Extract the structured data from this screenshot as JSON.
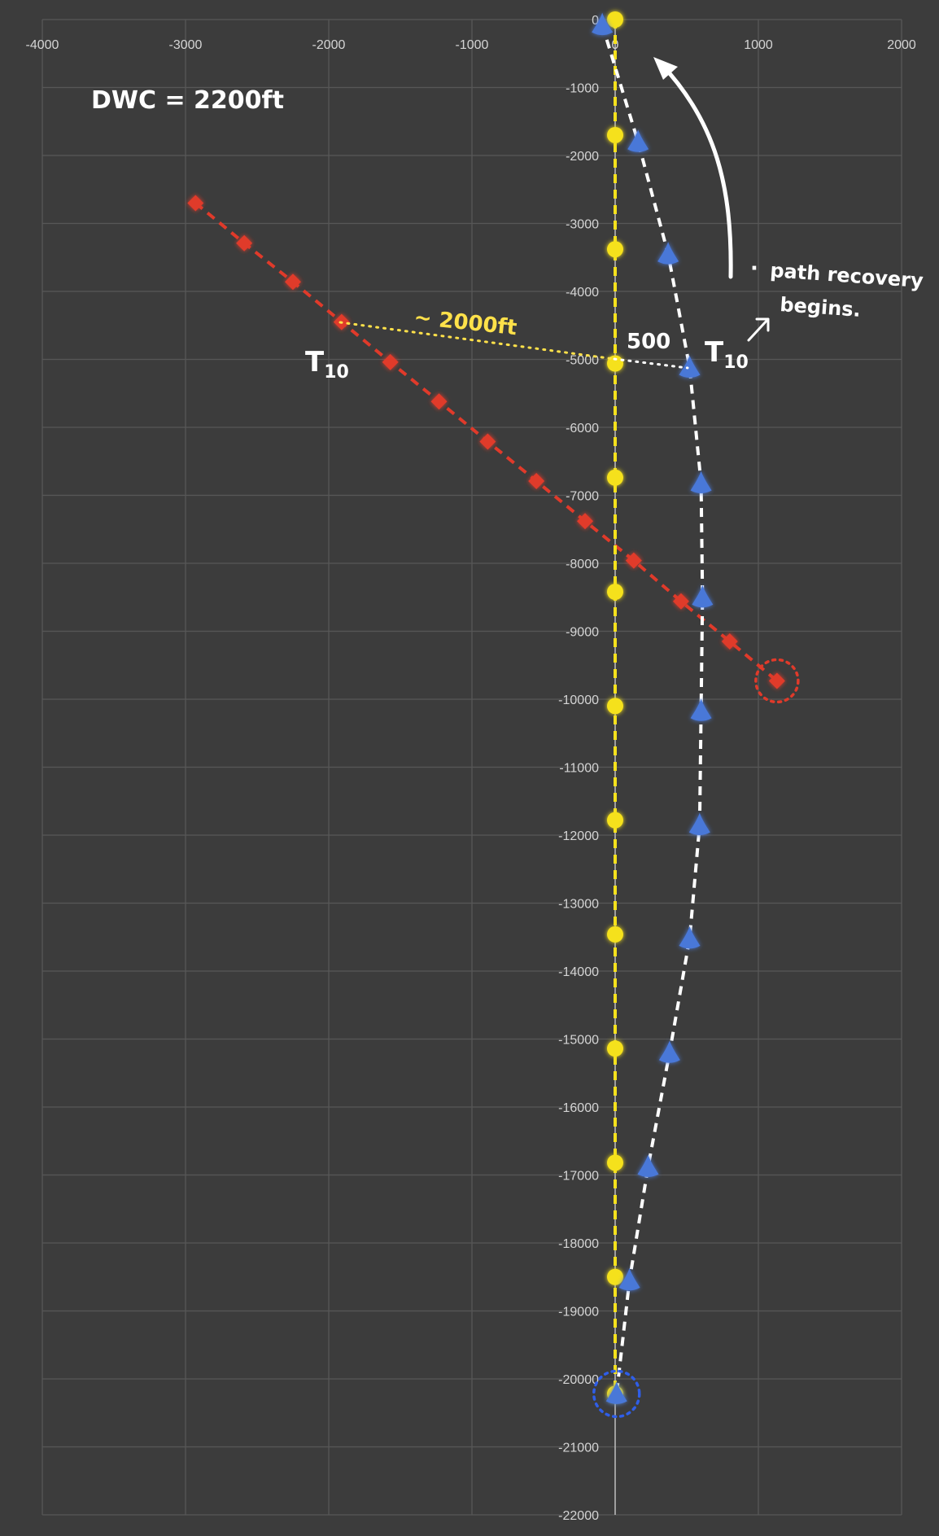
{
  "chart_data": {
    "type": "scatter",
    "xlim": [
      -4000,
      2000
    ],
    "ylim": [
      -22000,
      0
    ],
    "x_ticks": [
      -4000,
      -3000,
      -2000,
      -1000,
      0,
      1000,
      2000
    ],
    "y_ticks": [
      0,
      -1000,
      -2000,
      -3000,
      -4000,
      -5000,
      -6000,
      -7000,
      -8000,
      -9000,
      -10000,
      -11000,
      -12000,
      -13000,
      -14000,
      -15000,
      -16000,
      -17000,
      -18000,
      -19000,
      -20000,
      -21000,
      -22000
    ],
    "x_tick_labels": [
      "-4000",
      "-3000",
      "-2000",
      "-1000",
      "0",
      "1000",
      "2000"
    ],
    "y_tick_labels": [
      "0",
      "-1000",
      "-2000",
      "-3000",
      "-4000",
      "-5000",
      "-6000",
      "-7000",
      "-8000",
      "-9000",
      "-10000",
      "-11000",
      "-12000",
      "-13000",
      "-14000",
      "-15000",
      "-16000",
      "-17000",
      "-18000",
      "-19000",
      "-20000",
      "-21000",
      "-22000"
    ],
    "grid": true,
    "series": [
      {
        "key": "yellow",
        "marker": "circle",
        "color": "#f5e11c",
        "x": [
          0,
          0,
          0,
          0,
          0,
          0,
          0,
          0,
          0,
          0,
          0,
          0,
          0
        ],
        "y": [
          0,
          -1700,
          -3380,
          -5060,
          -6740,
          -8420,
          -10100,
          -11780,
          -13460,
          -15140,
          -16820,
          -18500,
          -20220
        ]
      },
      {
        "key": "blue",
        "marker": "triangle",
        "color": "#4a78d8",
        "x": [
          -90,
          160,
          370,
          520,
          600,
          610,
          600,
          590,
          520,
          380,
          230,
          100,
          10
        ],
        "y": [
          -80,
          -1800,
          -3450,
          -5120,
          -6820,
          -8500,
          -10170,
          -11850,
          -13520,
          -15200,
          -16880,
          -18550,
          -20220
        ]
      },
      {
        "key": "red",
        "marker": "diamond",
        "color": "#e03a2a",
        "x": [
          -2930,
          -2590,
          -2250,
          -1910,
          -1570,
          -1230,
          -890,
          -550,
          -210,
          130,
          460,
          800,
          1130
        ],
        "y": [
          -2700,
          -3290,
          -3860,
          -4450,
          -5040,
          -5620,
          -6210,
          -6790,
          -7380,
          -7960,
          -8560,
          -9150,
          -9730
        ]
      }
    ]
  },
  "annotations": {
    "dwc": "DWC = 2200ft",
    "approx_distance": "~ 2000ft",
    "offset": "500",
    "t10_left": "T",
    "t10_left_sub": "10",
    "t10_right": "T",
    "t10_right_sub": "10",
    "recovery_bullet": "·",
    "recovery_line1": "path recovery",
    "recovery_line2": "begins."
  },
  "colors": {
    "background": "#3c3c3c",
    "grid": "#575757",
    "yellow": "#f5e11c",
    "blue": "#4a78d8",
    "red": "#e03a2a",
    "annotation": "#ffffff"
  }
}
